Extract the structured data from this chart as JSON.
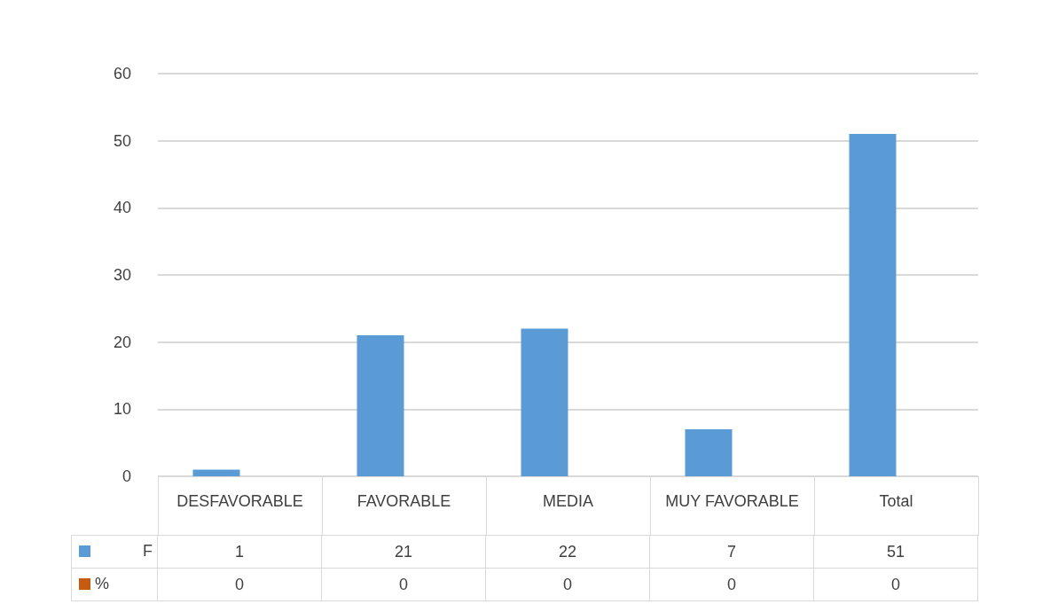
{
  "chart_data": {
    "type": "bar",
    "categories": [
      "DESFAVORABLE",
      "FAVORABLE",
      "MEDIA",
      "MUY FAVORABLE",
      "Total"
    ],
    "series": [
      {
        "name": "F",
        "color": "#5b9bd5",
        "values": [
          1,
          21,
          22,
          7,
          51
        ]
      },
      {
        "name": "%",
        "color": "#c55a11",
        "values": [
          0,
          0,
          0,
          0,
          0
        ]
      }
    ],
    "ylim": [
      0,
      60
    ],
    "yticks": [
      0,
      10,
      20,
      30,
      40,
      50,
      60
    ],
    "grid": "y",
    "legend": "bottom",
    "data_labels": true
  }
}
